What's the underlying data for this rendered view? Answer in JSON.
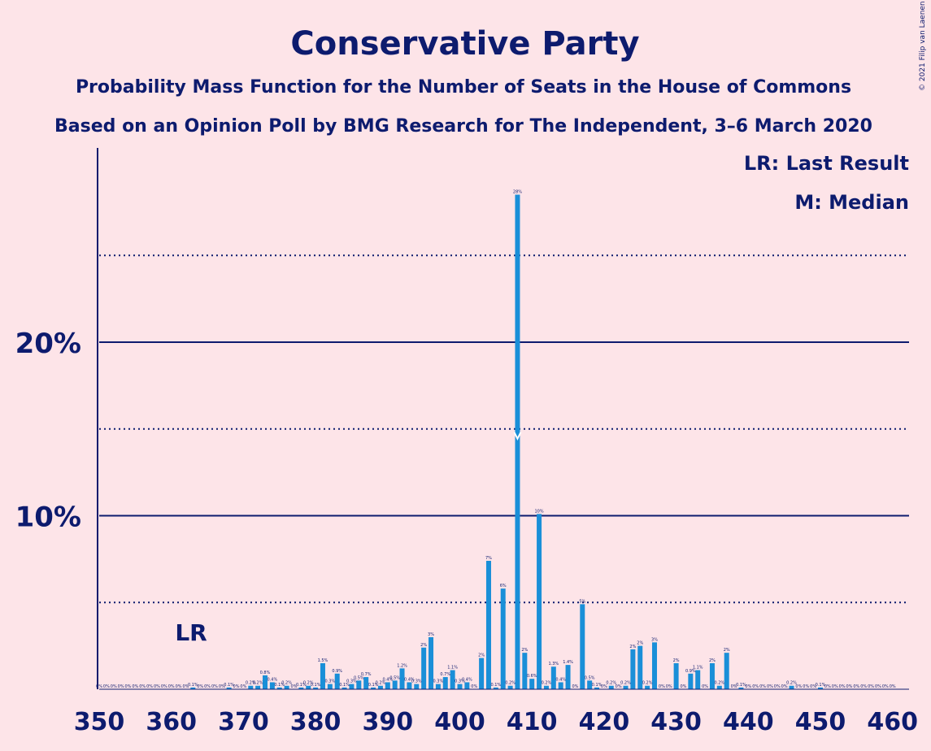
{
  "copyright": "© 2021 Filip van Laenen",
  "chart_data": {
    "type": "bar",
    "title": "Conservative Party",
    "subtitle": "Probability Mass Function for the Number of Seats in the House of Commons",
    "subtitle2": "Based on an Opinion Poll by BMG Research for The Independent, 3–6 March 2020",
    "legend": [
      "LR: Last Result",
      "M: Median"
    ],
    "legend_position": "top-right",
    "last_result_label": "LR",
    "last_result": 365,
    "median": 408,
    "colors": {
      "bar": "#1a8fd8",
      "text": "#0d1b6e",
      "background": "#fde4e8"
    },
    "xlim": [
      350,
      460
    ],
    "ylim": [
      0,
      30
    ],
    "x_ticks": [
      350,
      360,
      370,
      380,
      390,
      400,
      410,
      420,
      430,
      440,
      450,
      460
    ],
    "y_ticks": [
      {
        "value": 10,
        "label": "10%"
      },
      {
        "value": 20,
        "label": "20%"
      }
    ],
    "dotted_gridlines": [
      5,
      15,
      25
    ],
    "x": [
      350,
      351,
      352,
      353,
      354,
      355,
      356,
      357,
      358,
      359,
      360,
      361,
      362,
      363,
      364,
      365,
      366,
      367,
      368,
      369,
      370,
      371,
      372,
      373,
      374,
      375,
      376,
      377,
      378,
      379,
      380,
      381,
      382,
      383,
      384,
      385,
      386,
      387,
      388,
      389,
      390,
      391,
      392,
      393,
      394,
      395,
      396,
      397,
      398,
      399,
      400,
      401,
      402,
      403,
      404,
      405,
      406,
      407,
      408,
      409,
      410,
      411,
      412,
      413,
      414,
      415,
      416,
      417,
      418,
      419,
      420,
      421,
      422,
      423,
      424,
      425,
      426,
      427,
      428,
      429,
      430,
      431,
      432,
      433,
      434,
      435,
      436,
      437,
      438,
      439,
      440,
      441,
      442,
      443,
      444,
      445,
      446,
      447,
      448,
      449,
      450,
      451,
      452,
      453,
      454,
      455,
      456,
      457,
      458,
      459,
      460
    ],
    "values": [
      0,
      0,
      0,
      0,
      0,
      0,
      0,
      0,
      0,
      0,
      0,
      0,
      0,
      0.1,
      0,
      0,
      0,
      0,
      0.1,
      0,
      0,
      0.2,
      0.2,
      0.8,
      0.4,
      0.1,
      0.2,
      0,
      0.1,
      0.2,
      0.1,
      1.5,
      0.3,
      0.9,
      0.1,
      0.3,
      0.5,
      0.7,
      0.1,
      0.2,
      0.4,
      0.5,
      1.2,
      0.4,
      0.3,
      2.4,
      3,
      0.3,
      0.7,
      1.1,
      0.3,
      0.4,
      0,
      1.8,
      7.4,
      0.1,
      5.8,
      0.2,
      28.5,
      2.1,
      0.6,
      10.1,
      0.2,
      1.3,
      0.4,
      1.4,
      0,
      4.9,
      0.5,
      0.1,
      0,
      0.2,
      0,
      0.2,
      2.3,
      2.5,
      0.2,
      2.7,
      0,
      0,
      1.5,
      0,
      0.9,
      1.1,
      0,
      1.5,
      0.2,
      2.1,
      0,
      0.1,
      0,
      0,
      0,
      0,
      0,
      0,
      0.2,
      0,
      0,
      0,
      0.1,
      0,
      0,
      0,
      0,
      0,
      0,
      0,
      0,
      0,
      0
    ],
    "labels": [
      "0%",
      "0%",
      "0%",
      "0%",
      "0%",
      "0%",
      "0%",
      "0%",
      "0%",
      "0%",
      "0%",
      "0%",
      "0%",
      "0.1%",
      "0%",
      "0%",
      "0%",
      "0%",
      "0.1%",
      "0%",
      "0%",
      "0.2%",
      "0.2%",
      "0.8%",
      "0.4%",
      "0.1%",
      "0.2%",
      "0%",
      "0.1%",
      "0.2%",
      "0.1%",
      "1.5%",
      "0.3%",
      "0.9%",
      "0.1%",
      "0.3%",
      "0.5%",
      "0.7%",
      "0.1%",
      "0.2%",
      "0.4%",
      "0.5%",
      "1.2%",
      "0.4%",
      "0.3%",
      "2%",
      "3%",
      "0.3%",
      "0.7%",
      "1.1%",
      "0.3%",
      "0.4%",
      "0%",
      "2%",
      "7%",
      "0.1%",
      "6%",
      "0.2%",
      "28%",
      "2%",
      "0.6%",
      "10%",
      "0.2%",
      "1.3%",
      "0.4%",
      "1.4%",
      "0%",
      "5%",
      "0.5%",
      "0.1%",
      "0%",
      "0.2%",
      "0%",
      "0.2%",
      "2%",
      "2%",
      "0.2%",
      "3%",
      "0%",
      "0%",
      "2%",
      "0%",
      "0.9%",
      "1.1%",
      "0%",
      "2%",
      "0.2%",
      "2%",
      "0%",
      "0.1%",
      "0%",
      "0%",
      "0%",
      "0%",
      "0%",
      "0%",
      "0.2%",
      "0%",
      "0%",
      "0%",
      "0.1%",
      "0%",
      "0%",
      "0%",
      "0%",
      "0%",
      "0%",
      "0%",
      "0%",
      "0%",
      "0%"
    ]
  }
}
